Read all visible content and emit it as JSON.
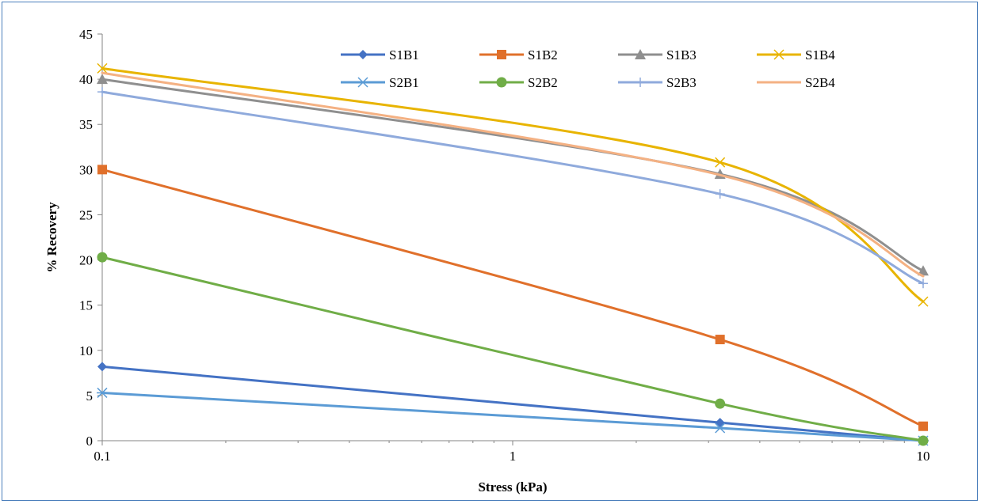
{
  "chart_data": {
    "type": "line",
    "title": "",
    "xlabel": "Stress (kPa)",
    "ylabel": "% Recovery",
    "x_scale": "log",
    "xlim": [
      0.1,
      10
    ],
    "ylim": [
      0,
      45
    ],
    "x_ticks": [
      0.1,
      1,
      10
    ],
    "x_tick_labels": [
      "0.1",
      "1",
      "10"
    ],
    "y_ticks": [
      0,
      5,
      10,
      15,
      20,
      25,
      30,
      35,
      40,
      45
    ],
    "y_tick_labels": [
      "0",
      "5",
      "10",
      "15",
      "20",
      "25",
      "30",
      "35",
      "40",
      "45"
    ],
    "grid": false,
    "legend_position": "top-right",
    "x": [
      0.1,
      3.2,
      10
    ],
    "series": [
      {
        "name": "S1B1",
        "values": [
          8.2,
          2.0,
          0.0
        ],
        "color": "#4472c4",
        "marker": "diamond"
      },
      {
        "name": "S1B2",
        "values": [
          30.0,
          11.2,
          1.6
        ],
        "color": "#e0702b",
        "marker": "square"
      },
      {
        "name": "S1B3",
        "values": [
          40.0,
          29.5,
          18.8
        ],
        "color": "#8f8f8f",
        "marker": "triangle"
      },
      {
        "name": "S1B4",
        "values": [
          41.2,
          30.8,
          15.4
        ],
        "color": "#e8b400",
        "marker": "x"
      },
      {
        "name": "S2B1",
        "values": [
          5.3,
          1.4,
          0.0
        ],
        "color": "#5b9bd5",
        "marker": "star"
      },
      {
        "name": "S2B2",
        "values": [
          20.3,
          4.1,
          0.0
        ],
        "color": "#70ad47",
        "marker": "circle"
      },
      {
        "name": "S2B3",
        "values": [
          38.6,
          27.3,
          17.4
        ],
        "color": "#8faadc",
        "marker": "plus"
      },
      {
        "name": "S2B4",
        "values": [
          40.7,
          29.4,
          18.2
        ],
        "color": "#f4b183",
        "marker": "none"
      }
    ]
  }
}
